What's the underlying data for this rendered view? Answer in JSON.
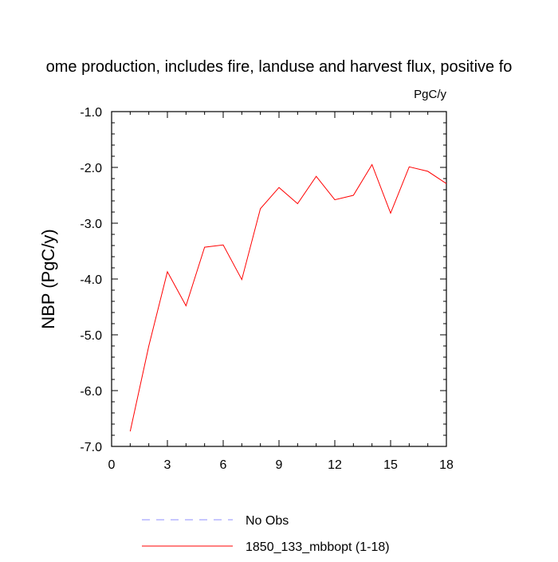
{
  "chart_data": {
    "type": "line",
    "title": "ome production, includes fire, landuse and harvest flux, positive fo",
    "units_label": "PgC/y",
    "xlabel": "",
    "ylabel": "NBP  (PgC/y)",
    "xlim": [
      0,
      18
    ],
    "ylim": [
      -7.0,
      -1.0
    ],
    "x_ticks": [
      0,
      3,
      6,
      9,
      12,
      15,
      18
    ],
    "x_tick_labels": [
      "0",
      "3",
      "6",
      "9",
      "12",
      "15",
      "18"
    ],
    "y_ticks": [
      -1.0,
      -2.0,
      -3.0,
      -4.0,
      -5.0,
      -6.0,
      -7.0
    ],
    "y_tick_labels": [
      "-1.0",
      "-2.0",
      "-3.0",
      "-4.0",
      "-5.0",
      "-6.0",
      "-7.0"
    ],
    "grid": false,
    "legend_position": "bottom-center",
    "legend": [
      {
        "name": "No Obs",
        "color": "#8f8fff",
        "style": "dashed"
      },
      {
        "name": "1850_133_mbbopt (1-18)",
        "color": "#ff0000",
        "style": "solid"
      }
    ],
    "series": [
      {
        "name": "1850_133_mbbopt (1-18)",
        "color": "#ff0000",
        "x": [
          1,
          2,
          3,
          4,
          5,
          6,
          7,
          8,
          9,
          10,
          11,
          12,
          13,
          14,
          15,
          16,
          17,
          18
        ],
        "values": [
          -6.73,
          -5.2,
          -3.87,
          -4.48,
          -3.43,
          -3.39,
          -4.01,
          -2.74,
          -2.36,
          -2.65,
          -2.16,
          -2.58,
          -2.5,
          -1.95,
          -2.82,
          -1.99,
          -2.07,
          -2.29
        ]
      }
    ]
  }
}
